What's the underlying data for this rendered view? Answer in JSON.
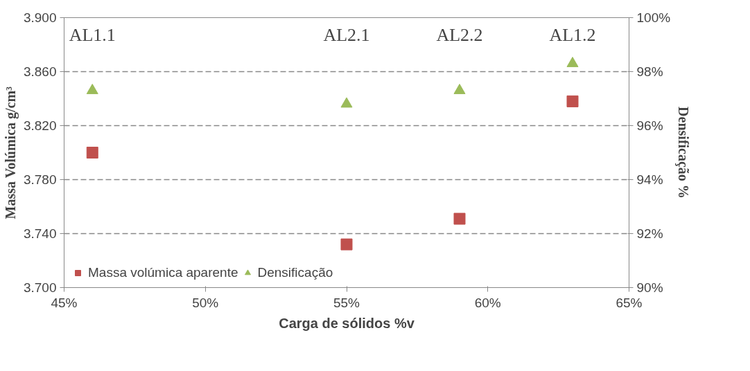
{
  "chart_data": {
    "type": "scatter",
    "xlabel": "Carga de sólidos %v",
    "ylabel": "Massa Volúmica g/cm³",
    "y2label": "Densificação %",
    "x": [
      46,
      55,
      59,
      63
    ],
    "series": [
      {
        "name": "Massa volúmica aparente",
        "color": "#c0504d",
        "marker": "square",
        "values": [
          3.8,
          3.732,
          3.751,
          3.838
        ]
      },
      {
        "name": "Densificação",
        "color": "#9bbb59",
        "marker": "triangle",
        "axis": "y2",
        "values": [
          97.3,
          96.8,
          97.3,
          98.3
        ]
      }
    ],
    "xlim": [
      45,
      65
    ],
    "xticks": [
      {
        "value": 45,
        "label": "45%"
      },
      {
        "value": 50,
        "label": "50%"
      },
      {
        "value": 55,
        "label": "55%"
      },
      {
        "value": 60,
        "label": "60%"
      },
      {
        "value": 65,
        "label": "65%"
      }
    ],
    "ylim": [
      3.7,
      3.9
    ],
    "yticks": [
      {
        "value": 3.7,
        "label": "3.700"
      },
      {
        "value": 3.74,
        "label": "3.740"
      },
      {
        "value": 3.78,
        "label": "3.780"
      },
      {
        "value": 3.82,
        "label": "3.820"
      },
      {
        "value": 3.86,
        "label": "3.860"
      },
      {
        "value": 3.9,
        "label": "3.900"
      }
    ],
    "y2lim": [
      90,
      100
    ],
    "y2ticks": [
      {
        "value": 90,
        "label": "90%"
      },
      {
        "value": 92,
        "label": "92%"
      },
      {
        "value": 94,
        "label": "94%"
      },
      {
        "value": 96,
        "label": "96%"
      },
      {
        "value": 98,
        "label": "98%"
      },
      {
        "value": 100,
        "label": "100%"
      }
    ],
    "annotations": [
      "AL1.1",
      "AL2.1",
      "AL2.2",
      "AL1.2"
    ],
    "grid": "y",
    "legend": "bottom left"
  }
}
